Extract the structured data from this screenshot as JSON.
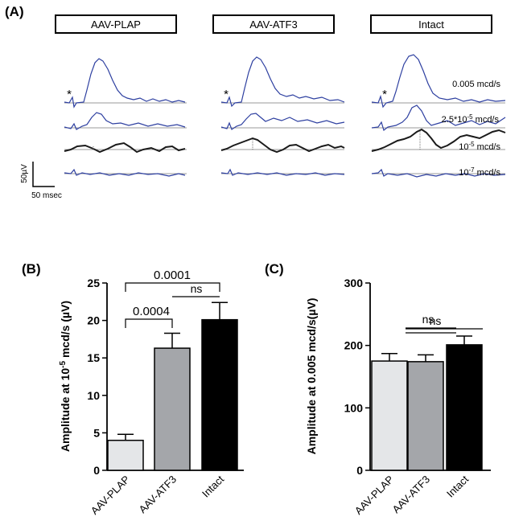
{
  "panel_a": {
    "label": "(A)",
    "groups": [
      "AAV-PLAP",
      "AAV-ATF3",
      "Intact"
    ],
    "intensities": [
      "0.005 mcd/s",
      "2.5*10-5 mcd/s",
      "10-5 mcd/s",
      "10-7 mcd/s"
    ],
    "stimulus_marker": "*",
    "scale_y_label": "50µV",
    "scale_x_label": "50 msec"
  },
  "panel_b": {
    "label": "(B)",
    "p_values": [
      "0.0001",
      "ns",
      "0.0004"
    ]
  },
  "panel_c": {
    "label": "(C)",
    "p_values": [
      "ns",
      "ns"
    ]
  },
  "colors": {
    "trace": "#2d3fa0",
    "highlight_trace": "#1a1a1a",
    "baseline": "#9a9a9a",
    "bar_plap": "#e4e6e8",
    "bar_atf3": "#a4a6aa",
    "bar_intact": "#000000"
  },
  "chart_data": [
    {
      "type": "bar",
      "title": "",
      "categories": [
        "AAV-PLAP",
        "AAV-ATF3",
        "Intact"
      ],
      "values": [
        4.0,
        16.3,
        20.1
      ],
      "errors": [
        0.8,
        2.0,
        2.3
      ],
      "xlabel": "",
      "ylabel": "Amplitude at 10-5 mcd/s (µV)",
      "ylim": [
        0,
        25
      ],
      "yticks": [
        "0",
        "5",
        "10",
        "15",
        "20",
        "25"
      ]
    },
    {
      "type": "bar",
      "title": "",
      "categories": [
        "AAV-PLAP",
        "AAV-ATF3",
        "Intact"
      ],
      "values": [
        175,
        174,
        201
      ],
      "errors": [
        12,
        11,
        14
      ],
      "xlabel": "",
      "ylabel": "Amplitude at 0.005 mcd/s(µV)",
      "ylim": [
        0,
        300
      ],
      "yticks": [
        "0",
        "100",
        "200",
        "300"
      ]
    }
  ]
}
